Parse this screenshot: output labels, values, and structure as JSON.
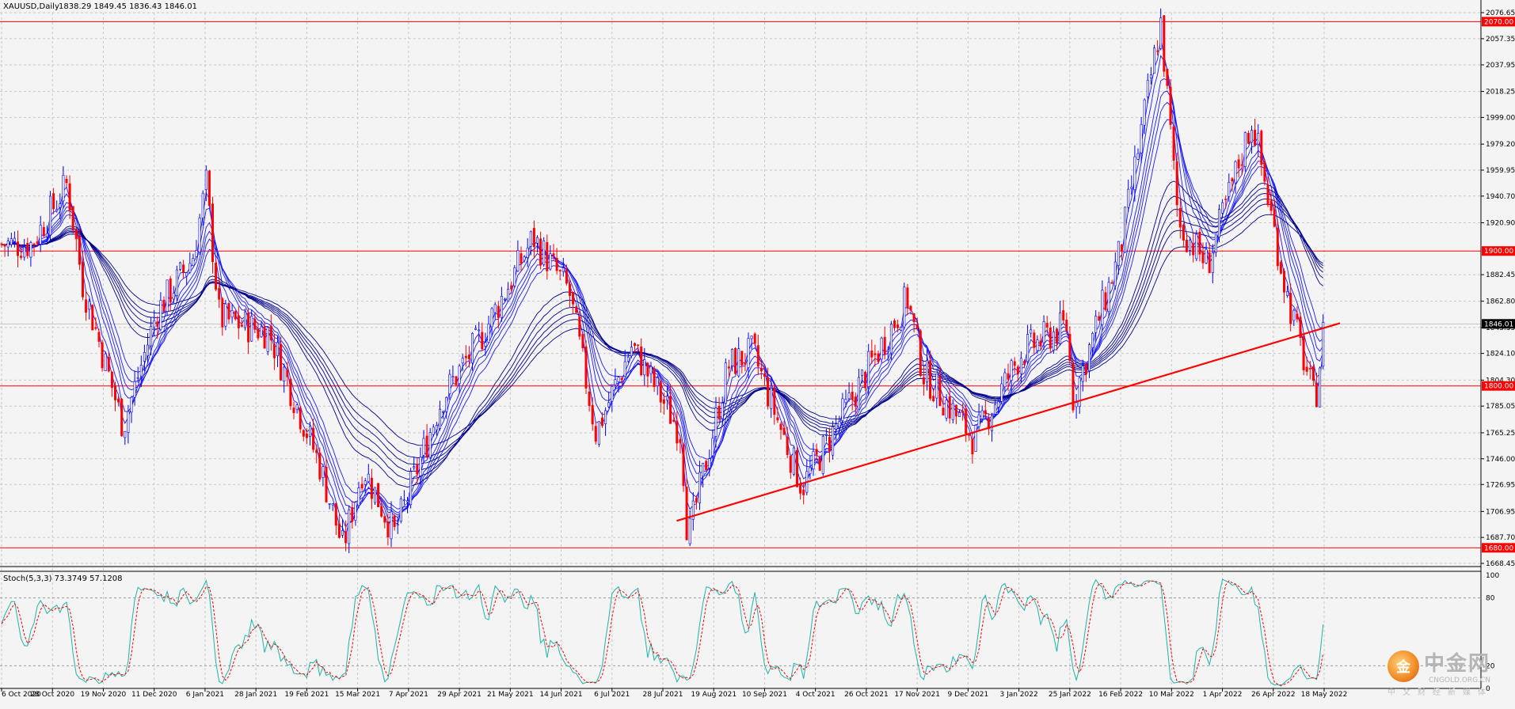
{
  "header": {
    "symbol": "XAUUSD,Daily",
    "ohlc": "1838.29 1849.45 1836.43 1846.01"
  },
  "indicator": {
    "label": "Stoch(5,3,3) 73.3749 57.1208",
    "levels": [
      "100",
      "80",
      "20",
      "0"
    ]
  },
  "colors": {
    "background": "#f4f4f4",
    "grid": "#c8c8c8",
    "level_line": "#ff0000",
    "trendline": "#ff0000",
    "ma_ribbon": "#0000cc",
    "candle_up": "#0000ff",
    "candle_down": "#ff0000",
    "stoch_main": "#20b2aa",
    "stoch_signal": "#ff0000",
    "price_tag_bg": "#000000"
  },
  "watermark": {
    "chinese": "中金网",
    "url": "CNGOLD.ORG.CN",
    "sub": "中文财经新媒体"
  },
  "chart_data": {
    "type": "candlestick",
    "instrument": "XAUUSD",
    "timeframe": "Daily",
    "current_price": 1846.01,
    "current_price_label": "1846.01",
    "ylim": [
      1668.45,
      2076.65
    ],
    "y_ticks": [
      "2076.65",
      "2057.35",
      "2037.95",
      "2018.25",
      "1999.00",
      "1979.20",
      "1959.95",
      "1940.70",
      "1920.90",
      "1882.45",
      "1862.80",
      "1843.35",
      "1824.10",
      "1804.30",
      "1785.05",
      "1765.25",
      "1746.00",
      "1726.95",
      "1706.95",
      "1687.70",
      "1668.45"
    ],
    "horizontal_levels": [
      {
        "value": 2070.0,
        "label": "2070.00"
      },
      {
        "value": 1900.0,
        "label": "1900.00"
      },
      {
        "value": 1800.0,
        "label": "1800.00"
      },
      {
        "value": 1680.0,
        "label": "1680.00"
      }
    ],
    "trendline": {
      "from": {
        "date": "2021-08-04",
        "price": 1700
      },
      "to": {
        "date": "2022-05-20",
        "price": 1843
      }
    },
    "x_labels": [
      "6 Oct 2020",
      "28 Oct 2020",
      "19 Nov 2020",
      "11 Dec 2020",
      "6 Jan 2021",
      "28 Jan 2021",
      "19 Feb 2021",
      "15 Mar 2021",
      "7 Apr 2021",
      "29 Apr 2021",
      "21 May 2021",
      "14 Jun 2021",
      "6 Jul 2021",
      "28 Jul 2021",
      "19 Aug 2021",
      "10 Sep 2021",
      "4 Oct 2021",
      "26 Oct 2021",
      "17 Nov 2021",
      "9 Dec 2021",
      "3 Jan 2022",
      "25 Jan 2022",
      "16 Feb 2022",
      "10 Mar 2022",
      "1 Apr 2022",
      "26 Apr 2022",
      "18 May 2022"
    ],
    "price_path": [
      {
        "date": "2020-10-06",
        "close": 1905
      },
      {
        "date": "2020-10-20",
        "close": 1905
      },
      {
        "date": "2020-11-05",
        "close": 1950
      },
      {
        "date": "2020-11-12",
        "close": 1875
      },
      {
        "date": "2020-11-30",
        "close": 1770
      },
      {
        "date": "2020-12-15",
        "close": 1855
      },
      {
        "date": "2020-12-31",
        "close": 1895
      },
      {
        "date": "2021-01-06",
        "close": 1950
      },
      {
        "date": "2021-01-12",
        "close": 1850
      },
      {
        "date": "2021-02-03",
        "close": 1840
      },
      {
        "date": "2021-02-26",
        "close": 1740
      },
      {
        "date": "2021-03-08",
        "close": 1680
      },
      {
        "date": "2021-03-17",
        "close": 1740
      },
      {
        "date": "2021-03-31",
        "close": 1690
      },
      {
        "date": "2021-04-21",
        "close": 1790
      },
      {
        "date": "2021-05-10",
        "close": 1840
      },
      {
        "date": "2021-06-01",
        "close": 1910
      },
      {
        "date": "2021-06-17",
        "close": 1870
      },
      {
        "date": "2021-06-29",
        "close": 1765
      },
      {
        "date": "2021-07-15",
        "close": 1830
      },
      {
        "date": "2021-08-06",
        "close": 1765
      },
      {
        "date": "2021-08-09",
        "close": 1685
      },
      {
        "date": "2021-08-27",
        "close": 1815
      },
      {
        "date": "2021-09-07",
        "close": 1825
      },
      {
        "date": "2021-09-29",
        "close": 1725
      },
      {
        "date": "2021-10-21",
        "close": 1790
      },
      {
        "date": "2021-11-15",
        "close": 1865
      },
      {
        "date": "2021-11-22",
        "close": 1810
      },
      {
        "date": "2021-12-15",
        "close": 1760
      },
      {
        "date": "2022-01-05",
        "close": 1825
      },
      {
        "date": "2022-01-25",
        "close": 1845
      },
      {
        "date": "2022-01-28",
        "close": 1790
      },
      {
        "date": "2022-02-18",
        "close": 1900
      },
      {
        "date": "2022-03-08",
        "close": 2070
      },
      {
        "date": "2022-03-16",
        "close": 1920
      },
      {
        "date": "2022-03-29",
        "close": 1890
      },
      {
        "date": "2022-04-18",
        "close": 1998
      },
      {
        "date": "2022-05-03",
        "close": 1870
      },
      {
        "date": "2022-05-16",
        "close": 1787
      },
      {
        "date": "2022-05-20",
        "close": 1846
      }
    ]
  }
}
